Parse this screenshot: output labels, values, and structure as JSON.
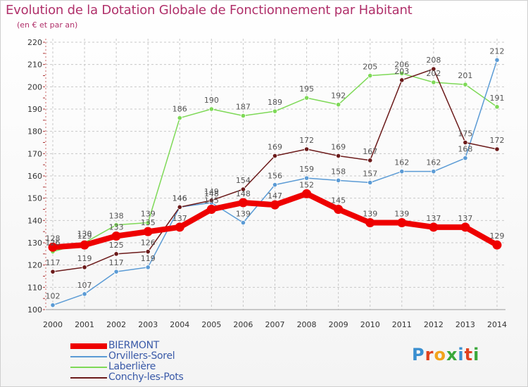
{
  "header": {
    "title": "Evolution de la Dotation Globale de Fonctionnement par Habitant",
    "subtitle": "(en € et par an)"
  },
  "logo": {
    "text": "Proxiti",
    "colors": [
      "#3a8fd0",
      "#e0421f",
      "#f2a31b",
      "#3aa83a",
      "#3a8fd0",
      "#e0421f",
      "#3aa83a"
    ]
  },
  "colors": {
    "title": "#b0306a",
    "grid": "#c8c8c8",
    "axis_text": "#333333",
    "legend_text": "#3a5aa8"
  },
  "chart_data": {
    "type": "line",
    "title": "Evolution de la Dotation Globale de Fonctionnement par Habitant",
    "subtitle": "(en € et par an)",
    "x": [
      "2000",
      "2001",
      "2002",
      "2003",
      "2004",
      "2005",
      "2006",
      "2007",
      "2008",
      "2009",
      "2010",
      "2011",
      "2012",
      "2013",
      "2014"
    ],
    "ylim": [
      100,
      220
    ],
    "yticks": [
      100,
      110,
      120,
      130,
      140,
      150,
      160,
      170,
      180,
      190,
      200,
      210,
      220
    ],
    "grid": true,
    "legend_position": "bottom-left",
    "series": [
      {
        "name": "BIERMONT",
        "color": "#ee0000",
        "values": [
          128,
          129,
          133,
          135,
          137,
          145,
          148,
          147,
          152,
          145,
          139,
          139,
          137,
          137,
          129
        ],
        "labels": [
          "128",
          "129",
          "133",
          "135",
          "137",
          "145",
          "148",
          "147",
          "152",
          "145",
          "139",
          "139",
          "137",
          "137",
          "129"
        ]
      },
      {
        "name": "Orvillers-Sorel",
        "color": "#5b9bd5",
        "values": [
          102,
          107,
          117,
          119,
          146,
          148,
          139,
          156,
          159,
          158,
          157,
          162,
          162,
          168,
          212
        ],
        "labels": [
          "102",
          "107",
          "117",
          "119",
          "146",
          "148",
          "139",
          "156",
          "159",
          "158",
          "157",
          "162",
          "162",
          "168",
          "212"
        ]
      },
      {
        "name": "Laberlière",
        "color": "#7ed957",
        "values": [
          126,
          130,
          138,
          139,
          186,
          190,
          187,
          189,
          195,
          192,
          205,
          206,
          202,
          201,
          191
        ],
        "labels": [
          "126",
          "130",
          "138",
          "139",
          "186",
          "190",
          "187",
          "189",
          "195",
          "192",
          "205",
          "206",
          "202",
          "201",
          "191"
        ]
      },
      {
        "name": "Conchy-les-Pots",
        "color": "#6b1a1a",
        "values": [
          117,
          119,
          125,
          126,
          146,
          149,
          154,
          169,
          172,
          169,
          167,
          203,
          208,
          175,
          172
        ],
        "labels": [
          "117",
          "119",
          "125",
          "126",
          "146",
          "149",
          "154",
          "169",
          "172",
          "169",
          "167",
          "203",
          "208",
          "175",
          "172"
        ]
      }
    ]
  }
}
